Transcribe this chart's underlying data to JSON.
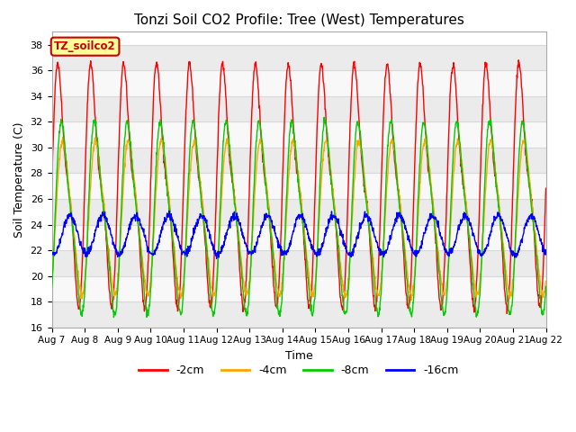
{
  "title": "Tonzi Soil CO2 Profile: Tree (West) Temperatures",
  "xlabel": "Time",
  "ylabel": "Soil Temperature (C)",
  "ylim": [
    16,
    39
  ],
  "yticks": [
    16,
    18,
    20,
    22,
    24,
    26,
    28,
    30,
    32,
    34,
    36,
    38
  ],
  "legend_labels": [
    "-2cm",
    "-4cm",
    "-8cm",
    "-16cm"
  ],
  "legend_colors": [
    "#ff0000",
    "#ffa500",
    "#00cc00",
    "#0000ff"
  ],
  "annotation_text": "TZ_soilco2",
  "annotation_color": "#cc0000",
  "annotation_bg": "#ffff99",
  "background_color": "#ffffff",
  "grid_color": "#d8d8d8",
  "start_day": 7,
  "end_day": 22,
  "n_days": 15,
  "n_points": 1500,
  "depth_params": {
    "-2cm": {
      "mean": 27.0,
      "amp": 9.5,
      "phase": 0.0,
      "sharp": 3.0
    },
    "-4cm": {
      "mean": 24.5,
      "amp": 6.0,
      "phase": 0.12,
      "sharp": 1.5
    },
    "-8cm": {
      "mean": 24.5,
      "amp": 7.5,
      "phase": 0.1,
      "sharp": 2.0
    },
    "-16cm": {
      "mean": 23.2,
      "amp": 1.5,
      "phase": 0.3,
      "sharp": 1.0
    }
  }
}
